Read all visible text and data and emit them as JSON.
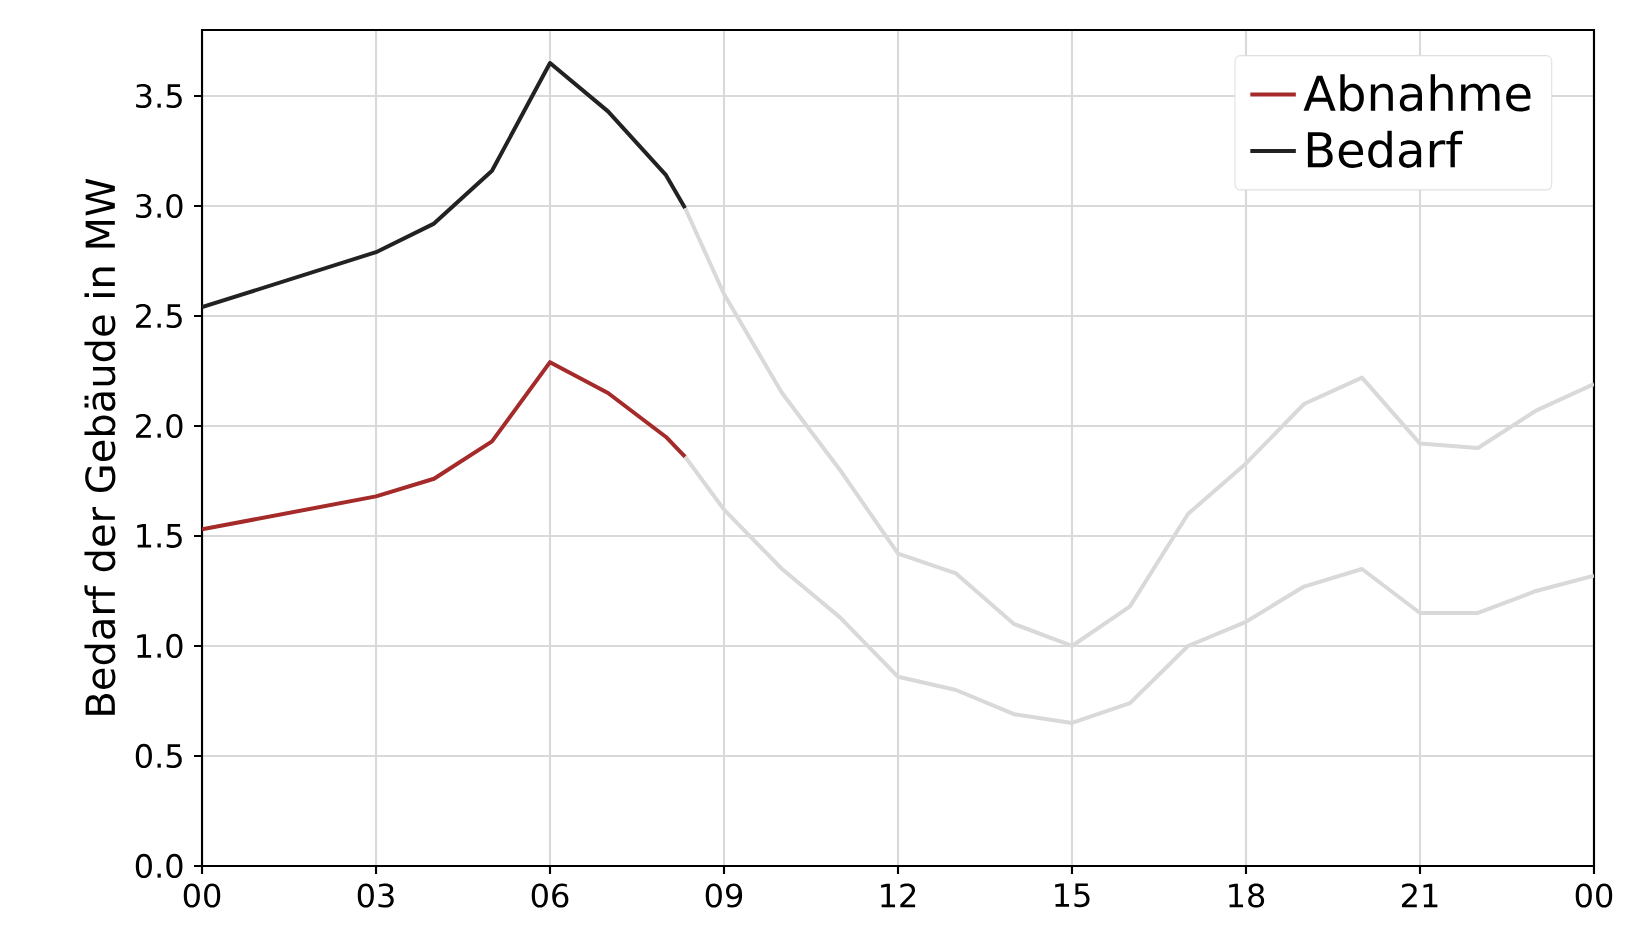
{
  "chart_data": {
    "type": "line",
    "ylabel": "Bedarf der Gebäude in MW",
    "xlim": [
      0,
      24
    ],
    "ylim": [
      0,
      3.8
    ],
    "xticks": [
      {
        "value": 0,
        "label": "00"
      },
      {
        "value": 3,
        "label": "03"
      },
      {
        "value": 6,
        "label": "06"
      },
      {
        "value": 9,
        "label": "09"
      },
      {
        "value": 12,
        "label": "12"
      },
      {
        "value": 15,
        "label": "15"
      },
      {
        "value": 18,
        "label": "18"
      },
      {
        "value": 21,
        "label": "21"
      },
      {
        "value": 24,
        "label": "00"
      }
    ],
    "yticks": [
      {
        "value": 0,
        "label": "0.0"
      },
      {
        "value": 0.5,
        "label": "0.5"
      },
      {
        "value": 1,
        "label": "1.0"
      },
      {
        "value": 1.5,
        "label": "1.5"
      },
      {
        "value": 2,
        "label": "2.0"
      },
      {
        "value": 2.5,
        "label": "2.5"
      },
      {
        "value": 3,
        "label": "3.0"
      },
      {
        "value": 3.5,
        "label": "3.5"
      }
    ],
    "grid": true,
    "legend": "top right",
    "series": [
      {
        "name": "Abnahme",
        "color": "#a52a2a",
        "x": [
          0,
          3,
          4,
          5,
          6,
          7,
          8,
          8.33
        ],
        "values": [
          1.53,
          1.68,
          1.76,
          1.93,
          2.29,
          2.15,
          1.95,
          1.86
        ]
      },
      {
        "name": "Bedarf",
        "color": "#222222",
        "x": [
          0,
          3,
          4,
          5,
          6,
          7,
          8,
          8.33
        ],
        "values": [
          2.54,
          2.79,
          2.92,
          3.16,
          3.65,
          3.43,
          3.14,
          2.99
        ]
      },
      {
        "color": "#d9d9d9",
        "x": [
          8.33,
          9,
          10,
          11,
          12,
          13,
          14,
          15,
          16,
          17,
          18,
          19,
          20,
          21,
          22,
          23,
          24
        ],
        "values": [
          2.99,
          2.6,
          2.15,
          1.8,
          1.42,
          1.33,
          1.1,
          1.0,
          1.18,
          1.6,
          1.83,
          2.1,
          2.22,
          1.92,
          1.9,
          2.07,
          2.19
        ]
      },
      {
        "color": "#d9d9d9",
        "x": [
          8.33,
          9,
          10,
          11,
          12,
          13,
          14,
          15,
          16,
          17,
          18,
          19,
          20,
          21,
          22,
          23,
          24
        ],
        "values": [
          1.86,
          1.62,
          1.35,
          1.13,
          0.86,
          0.8,
          0.69,
          0.65,
          0.74,
          1.0,
          1.11,
          1.27,
          1.35,
          1.15,
          1.15,
          1.25,
          1.32
        ]
      }
    ]
  }
}
